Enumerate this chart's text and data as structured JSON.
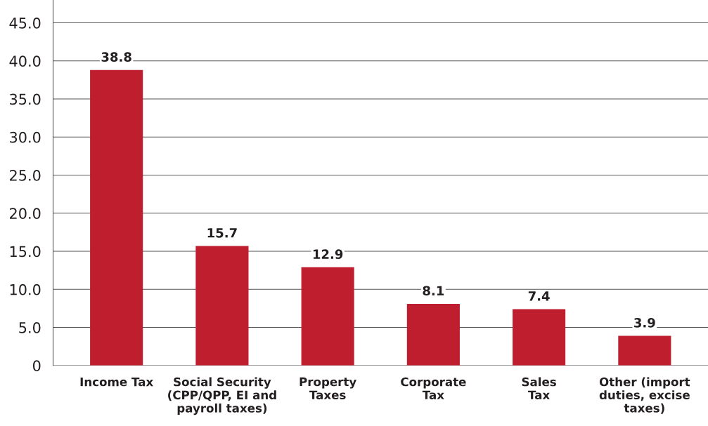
{
  "chart_data": {
    "type": "bar",
    "categories": [
      "Income Tax",
      "Social Security\n(CPP/QPP, EI and\npayroll taxes)",
      "Property\nTaxes",
      "Corporate\nTax",
      "Sales\nTax",
      "Other (import\nduties, excise\ntaxes)"
    ],
    "values": [
      38.8,
      15.7,
      12.9,
      8.1,
      7.4,
      3.9
    ],
    "color": "#be1e2d",
    "ylim": [
      0,
      48
    ],
    "yticks": [
      0,
      {
        "value": 5,
        "label": "5.0"
      },
      {
        "value": 10,
        "label": "10.0"
      },
      {
        "value": 15,
        "label": "15.0"
      },
      {
        "value": 20,
        "label": "20.0"
      },
      {
        "value": 25,
        "label": "25.0"
      },
      {
        "value": 30,
        "label": "30.0"
      },
      {
        "value": 35,
        "label": "35.0"
      },
      {
        "value": 40,
        "label": "40.0"
      },
      {
        "value": 45,
        "label": "45.0"
      }
    ],
    "grid": "y",
    "data_labels": true
  }
}
